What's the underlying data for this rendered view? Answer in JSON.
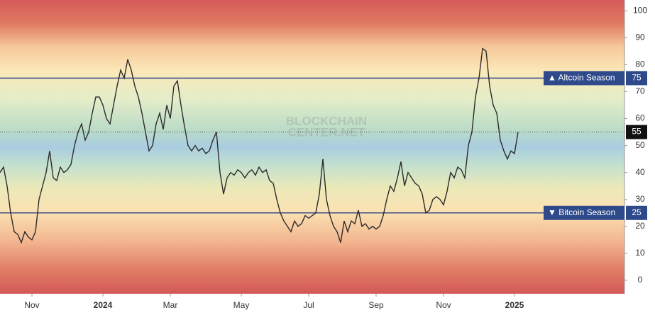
{
  "chart_data": {
    "type": "line",
    "x": [
      0,
      1,
      2,
      3,
      4,
      5,
      6,
      7,
      8,
      9,
      10,
      11,
      12,
      13,
      14,
      15,
      16,
      17,
      18,
      19,
      20,
      21,
      22,
      23,
      24,
      25,
      26,
      27,
      28,
      29,
      30,
      31,
      32,
      33,
      34,
      35,
      36,
      37,
      38,
      39,
      40,
      41,
      42,
      43,
      44,
      45,
      46,
      47,
      48,
      49,
      50,
      51,
      52,
      53,
      54,
      55,
      56,
      57,
      58,
      59,
      60,
      61,
      62,
      63,
      64,
      65,
      66,
      67,
      68,
      69,
      70,
      71,
      72,
      73,
      74,
      75,
      76,
      77,
      78,
      79,
      80,
      81,
      82,
      83,
      84,
      85,
      86,
      87,
      88,
      89,
      90,
      91,
      92,
      93,
      94,
      95,
      96,
      97,
      98,
      99,
      100,
      101,
      102,
      103,
      104,
      105,
      106,
      107,
      108,
      109,
      110,
      111,
      112,
      113,
      114,
      115,
      116,
      117,
      118,
      119,
      120,
      121,
      122,
      123,
      124,
      125,
      126,
      127,
      128,
      129,
      130,
      131,
      132,
      133,
      134,
      135,
      136,
      137,
      138,
      139,
      140,
      141,
      142,
      143,
      144,
      145,
      146
    ],
    "values": [
      40,
      42,
      35,
      25,
      18,
      17,
      14,
      18,
      16,
      15,
      18,
      30,
      35,
      40,
      48,
      38,
      37,
      42,
      40,
      41,
      43,
      50,
      55,
      58,
      52,
      55,
      62,
      68,
      68,
      65,
      60,
      58,
      65,
      72,
      78,
      75,
      82,
      78,
      72,
      68,
      62,
      55,
      48,
      50,
      58,
      62,
      56,
      65,
      60,
      72,
      74,
      65,
      57,
      50,
      48,
      50,
      48,
      49,
      47,
      48,
      52,
      55,
      40,
      32,
      38,
      40,
      39,
      41,
      40,
      38,
      40,
      41,
      39,
      42,
      40,
      41,
      37,
      36,
      30,
      25,
      22,
      20,
      18,
      22,
      20,
      21,
      24,
      23,
      24,
      25,
      32,
      45,
      30,
      24,
      20,
      18,
      14,
      22,
      18,
      22,
      21,
      26,
      20,
      21,
      19,
      20,
      19,
      20,
      24,
      30,
      35,
      33,
      38,
      44,
      35,
      40,
      38,
      36,
      35,
      32,
      25,
      26,
      30,
      31,
      30,
      28,
      33,
      40,
      38,
      42,
      41,
      38,
      50,
      55,
      68,
      75,
      86,
      85,
      72,
      65,
      62,
      52,
      48,
      45,
      48,
      47,
      55
    ],
    "color": "#2b2b2b",
    "xlim": [
      0,
      176
    ],
    "xticks": [
      {
        "value": 9,
        "label": "Nov"
      },
      {
        "value": 29,
        "label": "2024"
      },
      {
        "value": 48,
        "label": "Mar"
      },
      {
        "value": 68,
        "label": "May"
      },
      {
        "value": 87,
        "label": "Jul"
      },
      {
        "value": 106,
        "label": "Sep"
      },
      {
        "value": 125,
        "label": "Nov"
      },
      {
        "value": 145,
        "label": "2025"
      }
    ],
    "ylim": [
      -5,
      104
    ],
    "yticks": [
      0,
      10,
      20,
      30,
      40,
      50,
      60,
      70,
      80,
      90,
      100
    ],
    "thresholds": [
      {
        "value": 75,
        "label": "▲ Altcoin Season"
      },
      {
        "value": 25,
        "label": "▼ Bitcoin Season"
      }
    ],
    "watermark": [
      "BLOCKCHAIN",
      "CENTER.NET"
    ]
  }
}
